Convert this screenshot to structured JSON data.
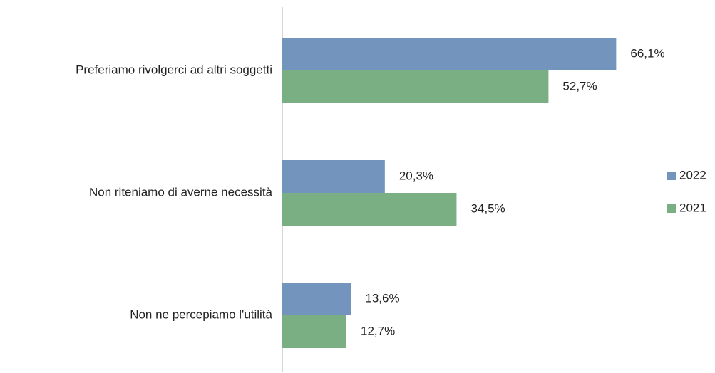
{
  "chart_data": {
    "type": "bar",
    "orientation": "horizontal",
    "categories": [
      "Preferiamo rivolgerci ad altri soggetti",
      "Non riteniamo di averne necessità",
      "Non ne percepiamo l'utilità"
    ],
    "series": [
      {
        "name": "2022",
        "color": "#7394bd",
        "values": [
          66.1,
          20.3,
          13.6
        ],
        "value_labels": [
          "66,1%",
          "20,3%",
          "13,6%"
        ]
      },
      {
        "name": "2021",
        "color": "#7aaf83",
        "values": [
          52.7,
          34.5,
          12.7
        ],
        "value_labels": [
          "52,7%",
          "34,5%",
          "12,7%"
        ]
      }
    ],
    "xlim": [
      0,
      70
    ],
    "legend": "right"
  }
}
